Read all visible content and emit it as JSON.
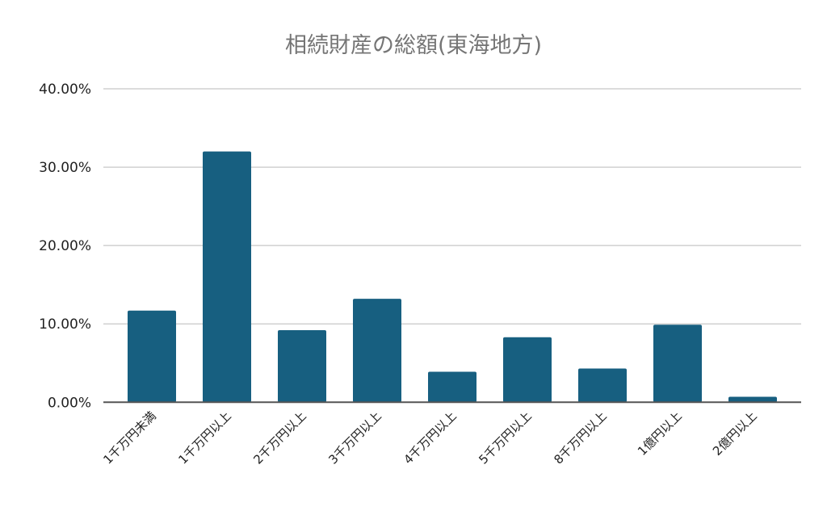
{
  "chart_data": {
    "type": "bar",
    "title": "相続財産の総額(東海地方)",
    "xlabel": "",
    "ylabel": "",
    "categories": [
      "1千万円未満",
      "1千万円以上",
      "2千万円以上",
      "3千万円以上",
      "4千万円以上",
      "5千万円以上",
      "8千万円以上",
      "1億円以上",
      "2億円以上"
    ],
    "values": [
      11.7,
      32.0,
      9.2,
      13.2,
      3.9,
      8.3,
      4.3,
      9.9,
      0.7
    ],
    "value_unit": "%",
    "ylim": [
      0,
      40
    ],
    "yticks": [
      "0.00%",
      "10.00%",
      "20.00%",
      "30.00%",
      "40.00%"
    ],
    "grid": true,
    "legend": "none",
    "colors": {
      "bar": "#175f80",
      "grid": "#d0d0d0",
      "axis": "#555555",
      "title": "#757575"
    }
  }
}
